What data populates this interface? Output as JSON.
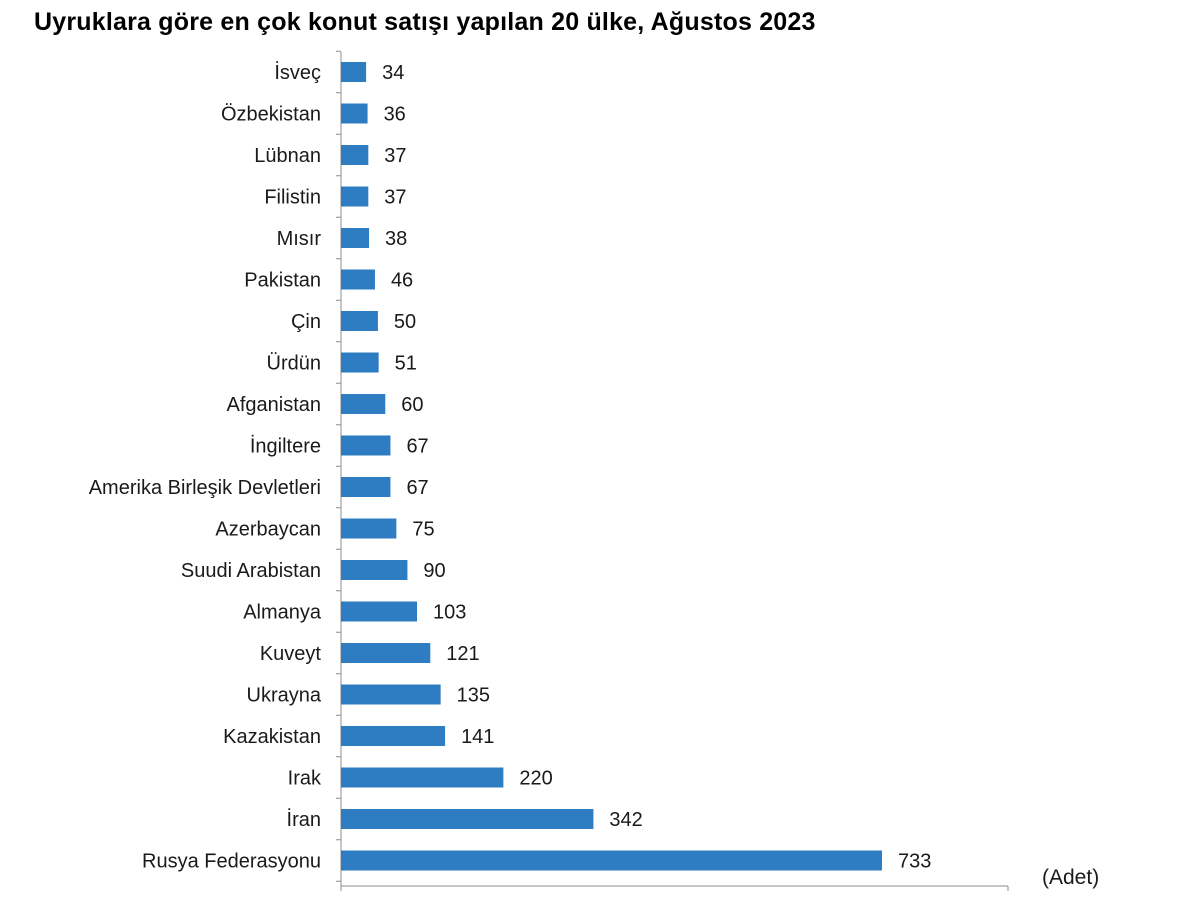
{
  "chart_data": {
    "type": "bar",
    "orientation": "horizontal",
    "title": "Uyruklara göre en çok konut satışı yapılan 20 ülke, Ağustos 2023",
    "unit": "(Adet)",
    "categories": [
      "İsveç",
      "Özbekistan",
      "Lübnan",
      "Filistin",
      "Mısır",
      "Pakistan",
      "Çin",
      "Ürdün",
      "Afganistan",
      "İngiltere",
      "Amerika Birleşik Devletleri",
      "Azerbaycan",
      "Suudi Arabistan",
      "Almanya",
      "Kuveyt",
      "Ukrayna",
      "Kazakistan",
      "Irak",
      "İran",
      "Rusya Federasyonu"
    ],
    "values": [
      34,
      36,
      37,
      37,
      38,
      46,
      50,
      51,
      60,
      67,
      67,
      75,
      90,
      103,
      121,
      135,
      141,
      220,
      342,
      733
    ],
    "data_labels": true,
    "grid": false,
    "bar_color": "#2E7CC1",
    "axis_color": "#8c8c8c"
  }
}
